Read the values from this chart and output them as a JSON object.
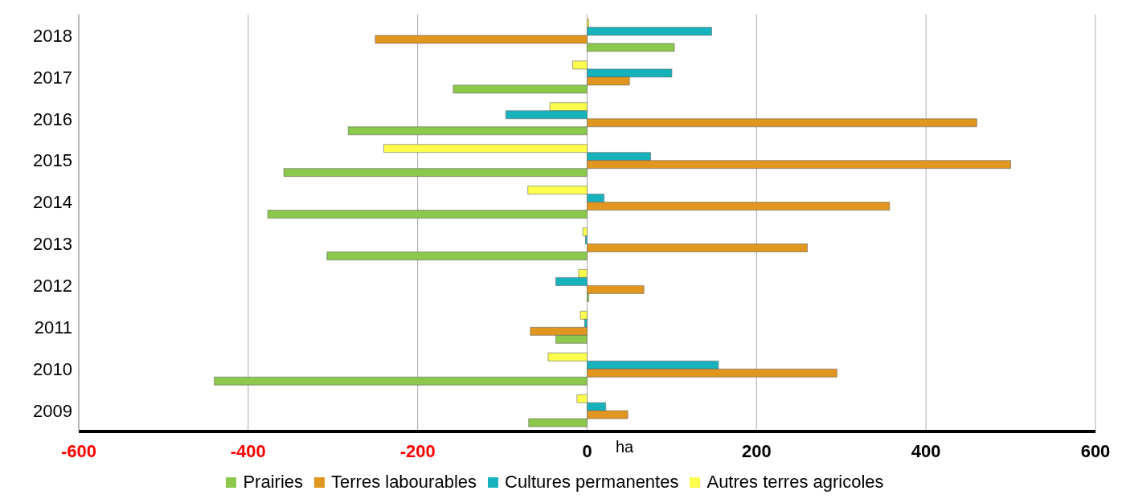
{
  "chart_data": {
    "type": "bar",
    "orientation": "horizontal",
    "xlabel": "ha",
    "categories": [
      "2018",
      "2017",
      "2016",
      "2015",
      "2014",
      "2013",
      "2012",
      "2011",
      "2010",
      "2009"
    ],
    "series": [
      {
        "name": "Prairies",
        "color": "#8cc84b",
        "values": [
          103,
          -158,
          -282,
          -358,
          -377,
          -307,
          2,
          -37,
          -440,
          -69
        ]
      },
      {
        "name": "Terres labourables",
        "color": "#e0961f",
        "values": [
          -250,
          50,
          460,
          500,
          357,
          260,
          67,
          -67,
          295,
          48
        ]
      },
      {
        "name": "Cultures permanentes",
        "color": "#17b3bd",
        "values": [
          147,
          100,
          -96,
          75,
          20,
          -2,
          -37,
          -3,
          155,
          22
        ]
      },
      {
        "name": "Autres terres agricoles",
        "color": "#ffff4d",
        "values": [
          2,
          -17,
          -44,
          -240,
          -70,
          -5,
          -10,
          -8,
          -46,
          -12
        ]
      }
    ],
    "xlim": [
      -600,
      600
    ],
    "xticks": [
      -600,
      -400,
      -200,
      0,
      200,
      400,
      600
    ],
    "grid": "x",
    "legend": "bottom"
  }
}
